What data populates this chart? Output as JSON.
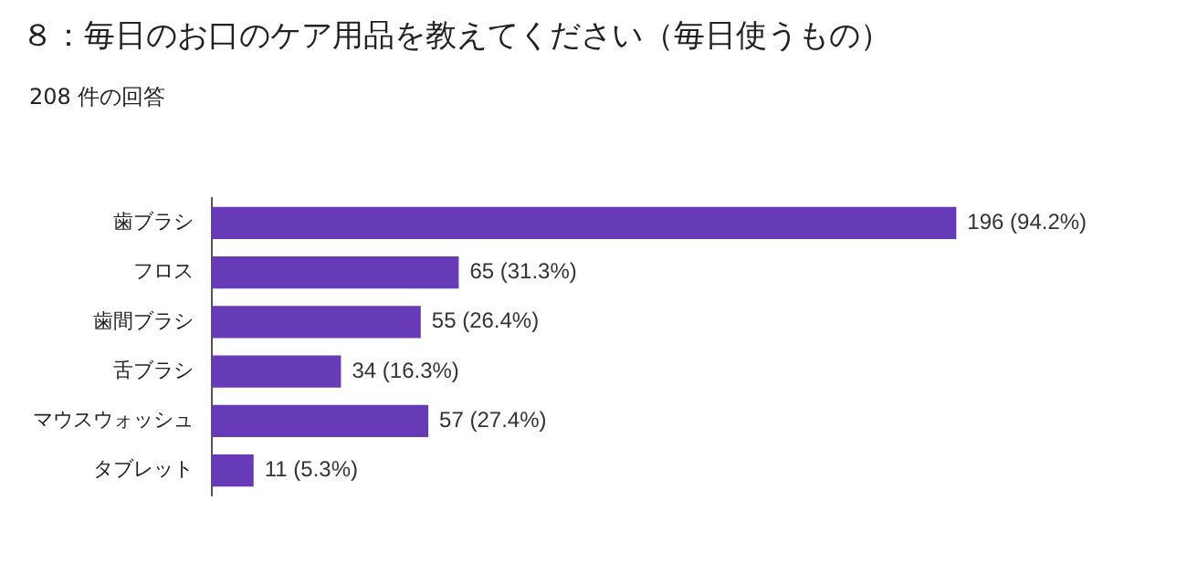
{
  "chart_data": {
    "type": "bar",
    "orientation": "horizontal",
    "title": "８：毎日のお口のケア用品を教えてください（毎日使うもの）",
    "subtitle": "208 件の回答",
    "categories": [
      "歯ブラシ",
      "フロス",
      "歯間ブラシ",
      "舌ブラシ",
      "マウスウォッシュ",
      "タブレット"
    ],
    "values": [
      196,
      65,
      55,
      34,
      57,
      11
    ],
    "value_labels": [
      "196 (94.2%)",
      "65 (31.3%)",
      "55 (26.4%)",
      "34 (16.3%)",
      "57 (27.4%)",
      "11 (5.3%)"
    ],
    "color": "#673ab7",
    "grid": false,
    "legend": false,
    "tick_labels": "y"
  }
}
